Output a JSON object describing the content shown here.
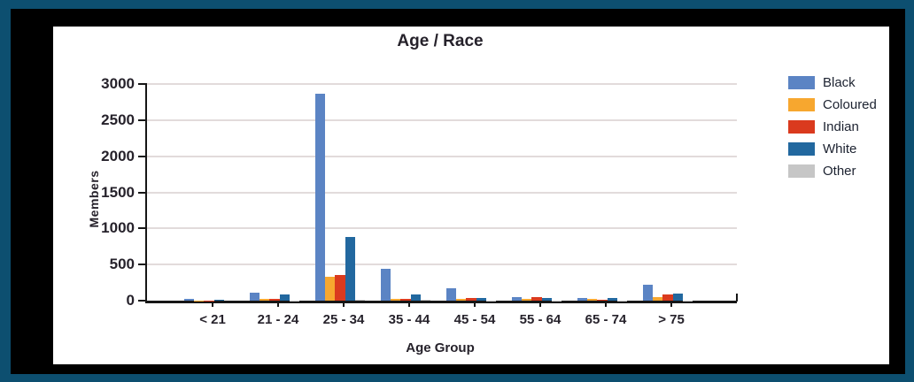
{
  "window": {
    "outer_border_color": "#0d4f70",
    "frame_color": "#000000",
    "panel_color": "#ffffff"
  },
  "chart_data": {
    "type": "bar",
    "title": "Age / Race",
    "xlabel": "Age Group",
    "ylabel": "Members",
    "categories": [
      "< 21",
      "21 - 24",
      "25 - 34",
      "35 - 44",
      "45 - 54",
      "55 - 64",
      "65 - 74",
      "> 75"
    ],
    "series": [
      {
        "name": "Black",
        "color": "#5b84c4",
        "values": [
          30,
          115,
          2870,
          440,
          170,
          55,
          35,
          215
        ]
      },
      {
        "name": "Coloured",
        "color": "#f7a72f",
        "values": [
          5,
          20,
          330,
          30,
          25,
          25,
          30,
          50
        ]
      },
      {
        "name": "Indian",
        "color": "#da3a1e",
        "values": [
          5,
          25,
          350,
          30,
          40,
          45,
          10,
          85
        ]
      },
      {
        "name": "White",
        "color": "#22689f",
        "values": [
          10,
          80,
          880,
          85,
          35,
          40,
          35,
          100
        ]
      },
      {
        "name": "Other",
        "color": "#c6c6c6",
        "values": [
          0,
          5,
          15,
          10,
          5,
          5,
          5,
          5
        ]
      }
    ],
    "ylim": [
      0,
      3000
    ],
    "yticks": [
      0,
      500,
      1000,
      1500,
      2000,
      2500,
      3000
    ],
    "grid": true,
    "legend_position": "right"
  }
}
